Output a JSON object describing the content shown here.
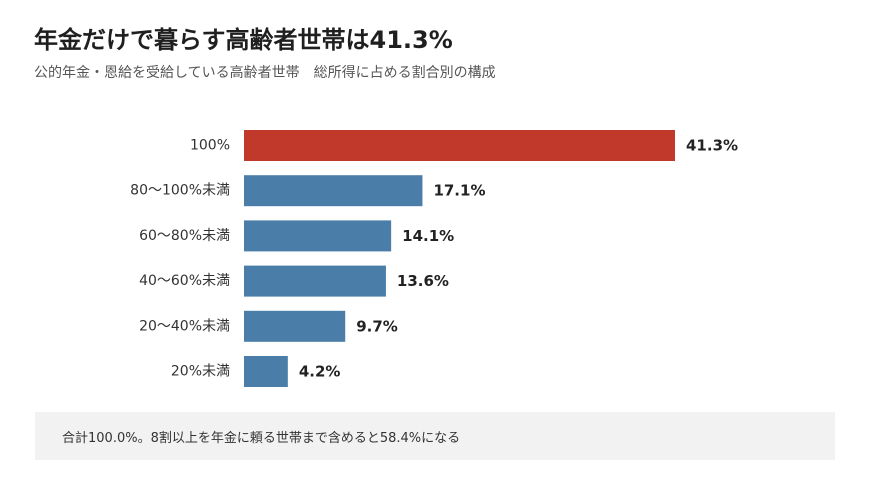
{
  "header": {
    "title": "年金だけで暮らす高齢者世帯は41.3%",
    "subtitle": "公的年金・恩給を受給している高齢者世帯　総所得に占める割合別の構成"
  },
  "footer": {
    "note": "合計100.0%。8割以上を年金に頼る世帯まで含めると58.4%になる"
  },
  "colors": {
    "highlight": "#c0392b",
    "bar": "#4a7ea8"
  },
  "chart_data": {
    "type": "bar",
    "orientation": "horizontal",
    "categories": [
      "100%",
      "80〜100%未満",
      "60〜80%未満",
      "40〜60%未満",
      "20〜40%未満",
      "20%未満"
    ],
    "values": [
      41.3,
      17.1,
      14.1,
      13.6,
      9.7,
      4.2
    ],
    "value_labels": [
      "41.3%",
      "17.1%",
      "14.1%",
      "13.6%",
      "9.7%",
      "4.2%"
    ],
    "highlight_index": 0,
    "xlim": [
      0,
      41.3
    ],
    "grid": false,
    "legend": "none"
  }
}
